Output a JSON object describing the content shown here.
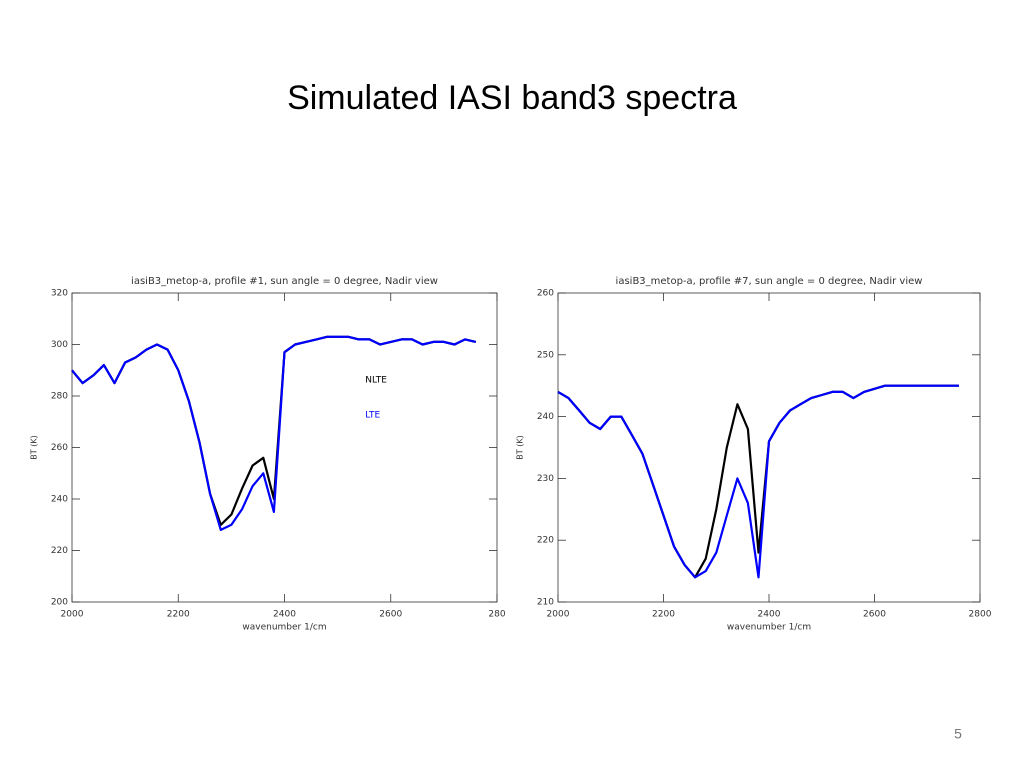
{
  "header": {
    "title": "Simulated IASI band3 spectra"
  },
  "page_number": "5",
  "chart_data": [
    {
      "type": "line",
      "title": "iasiB3_metop-a, profile #1, sun angle = 0 degree, Nadir view",
      "xlabel": "wavenumber 1/cm",
      "ylabel": "BT (K)",
      "x": [
        2000,
        2020,
        2040,
        2060,
        2080,
        2100,
        2120,
        2140,
        2160,
        2180,
        2200,
        2220,
        2240,
        2260,
        2280,
        2300,
        2320,
        2340,
        2360,
        2380,
        2400,
        2420,
        2440,
        2460,
        2480,
        2500,
        2520,
        2540,
        2560,
        2580,
        2600,
        2620,
        2640,
        2660,
        2680,
        2700,
        2720,
        2740,
        2760
      ],
      "series": [
        {
          "name": "NLTE",
          "color": "#000000",
          "values": [
            290,
            285,
            288,
            292,
            285,
            293,
            295,
            298,
            300,
            298,
            290,
            278,
            262,
            242,
            230,
            234,
            244,
            253,
            256,
            240,
            297,
            300,
            301,
            302,
            303,
            303,
            303,
            302,
            302,
            300,
            301,
            302,
            302,
            300,
            301,
            301,
            300,
            302,
            301
          ]
        },
        {
          "name": "LTE",
          "color": "#0000ff",
          "values": [
            290,
            285,
            288,
            292,
            285,
            293,
            295,
            298,
            300,
            298,
            290,
            278,
            262,
            242,
            228,
            230,
            236,
            245,
            250,
            235,
            297,
            300,
            301,
            302,
            303,
            303,
            303,
            302,
            302,
            300,
            301,
            302,
            302,
            300,
            301,
            301,
            300,
            302,
            301
          ]
        }
      ],
      "legend": true,
      "xlim": [
        2000,
        2800
      ],
      "xticks": [
        2000,
        2200,
        2400,
        2600,
        {
          "value": 2800,
          "label": "280"
        }
      ],
      "ylim": [
        200,
        320
      ],
      "yticks": [
        200,
        220,
        240,
        260,
        280,
        300,
        320
      ]
    },
    {
      "type": "line",
      "title": "iasiB3_metop-a, profile #7, sun angle = 0 degree, Nadir view",
      "xlabel": "wavenumber 1/cm",
      "ylabel": "BT (K)",
      "x": [
        2000,
        2020,
        2040,
        2060,
        2080,
        2100,
        2120,
        2140,
        2160,
        2180,
        2200,
        2220,
        2240,
        2260,
        2280,
        2300,
        2320,
        2340,
        2360,
        2380,
        2400,
        2420,
        2440,
        2460,
        2480,
        2500,
        2520,
        2540,
        2560,
        2580,
        2600,
        2620,
        2640,
        2660,
        2680,
        2700,
        2720,
        2740,
        2760
      ],
      "series": [
        {
          "color": "#000000",
          "values": [
            244,
            243,
            241,
            239,
            238,
            240,
            240,
            237,
            234,
            229,
            224,
            219,
            216,
            214,
            217,
            225,
            235,
            242,
            238,
            218,
            236,
            239,
            241,
            242,
            243,
            243.5,
            244,
            244,
            243,
            244,
            244.5,
            245,
            245,
            245,
            245,
            245,
            245,
            245,
            245
          ]
        },
        {
          "color": "#0000ff",
          "values": [
            244,
            243,
            241,
            239,
            238,
            240,
            240,
            237,
            234,
            229,
            224,
            219,
            216,
            214,
            215,
            218,
            224,
            230,
            226,
            214,
            236,
            239,
            241,
            242,
            243,
            243.5,
            244,
            244,
            243,
            244,
            244.5,
            245,
            245,
            245,
            245,
            245,
            245,
            245,
            245
          ]
        }
      ],
      "legend": false,
      "xlim": [
        2000,
        2800
      ],
      "xticks": [
        2000,
        2200,
        2400,
        2600,
        2800
      ],
      "ylim": [
        210,
        260
      ],
      "yticks": [
        210,
        220,
        230,
        240,
        250,
        260
      ]
    }
  ]
}
